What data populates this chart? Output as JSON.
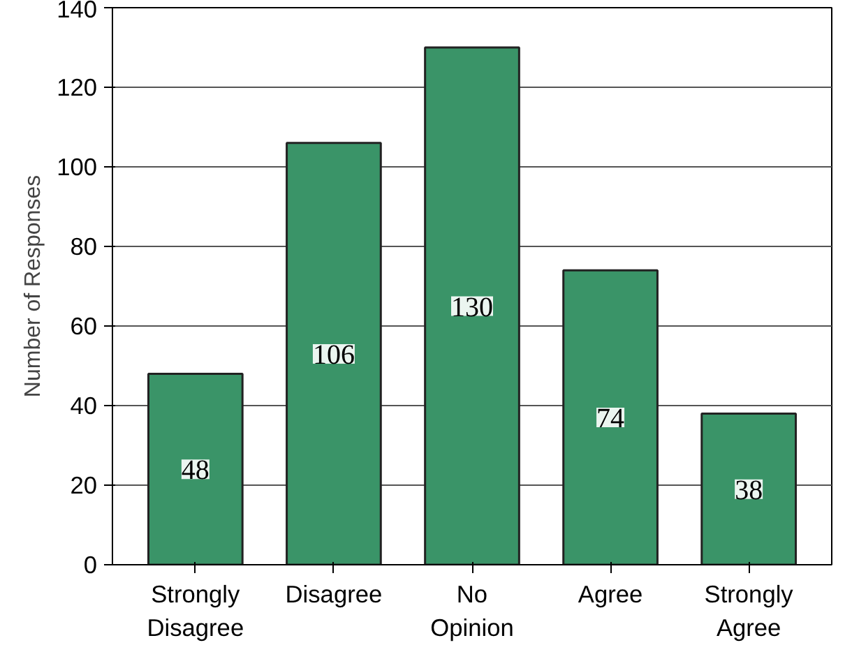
{
  "chart_data": {
    "type": "bar",
    "ylabel": "Number of Responses",
    "categories": [
      "Strongly\nDisagree",
      "Disagree",
      "No\nOpinion",
      "Agree",
      "Strongly\nAgree"
    ],
    "values": [
      48,
      106,
      130,
      74,
      38
    ],
    "color": "#3a9468",
    "ylim": [
      0,
      140
    ],
    "yticks": [
      0,
      20,
      40,
      60,
      80,
      100,
      120,
      140
    ],
    "grid": "y",
    "data_labels": true
  }
}
